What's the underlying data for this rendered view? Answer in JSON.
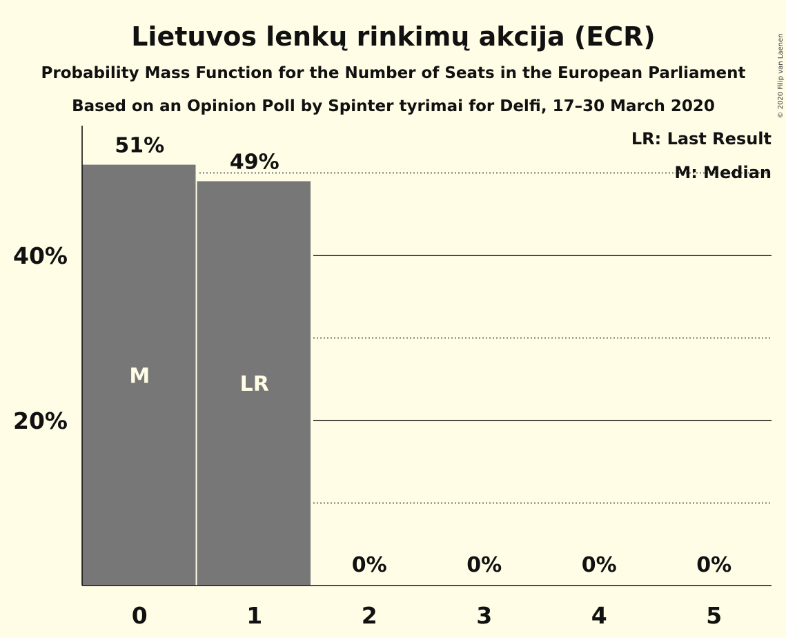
{
  "title": "Lietuvos lenkų rinkimų akcija (ECR)",
  "subtitle1": "Probability Mass Function for the Number of Seats in the European Parliament",
  "subtitle2": "Based on an Opinion Poll by Spinter tyrimai for Delfi, 17–30 March 2020",
  "copyright": "© 2020 Filip van Laenen",
  "legend": {
    "last_result": "LR: Last Result",
    "median": "M: Median"
  },
  "colors": {
    "background": "#fffde6",
    "bar": "#777777",
    "text": "#111111"
  },
  "chart_data": {
    "type": "bar",
    "categories": [
      "0",
      "1",
      "2",
      "3",
      "4",
      "5"
    ],
    "values": [
      51,
      49,
      0,
      0,
      0,
      0
    ],
    "value_labels": [
      "51%",
      "49%",
      "0%",
      "0%",
      "0%",
      "0%"
    ],
    "bar_markers": [
      "M",
      "LR",
      "",
      "",
      "",
      ""
    ],
    "ylim": [
      0,
      55
    ],
    "y_ticks": [
      20,
      40
    ],
    "y_tick_labels": [
      "20%",
      "40%"
    ],
    "minor_gridlines": [
      10,
      30,
      50
    ],
    "grid": true,
    "legend_position": "top-right"
  }
}
